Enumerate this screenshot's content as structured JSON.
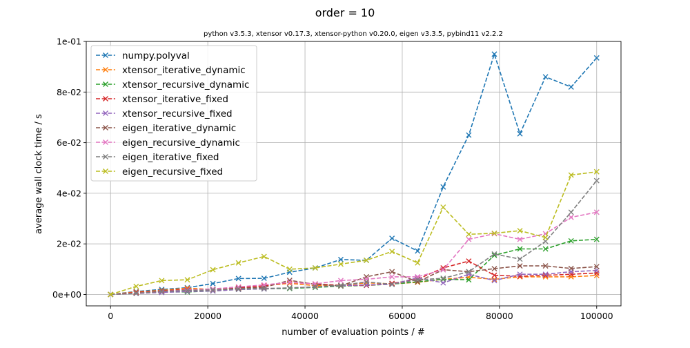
{
  "chart_data": {
    "type": "line",
    "title": "order = 10",
    "subtitle": "python v3.5.3, xtensor v0.17.3, xtensor-python v0.20.0, eigen v3.3.5, pybind11 v2.2.2",
    "xlabel": "number of evaluation points / #",
    "ylabel": "average wall clock time / s",
    "xlim": [
      -5000,
      105000
    ],
    "ylim": [
      -0.0045,
      0.1
    ],
    "xticks": [
      0,
      20000,
      40000,
      60000,
      80000,
      100000
    ],
    "xtick_labels": [
      "0",
      "20000",
      "40000",
      "60000",
      "80000",
      "100000"
    ],
    "yticks": [
      0,
      0.02,
      0.04,
      0.06,
      0.08,
      0.1
    ],
    "ytick_labels": [
      "0e+00",
      "2e-02",
      "4e-02",
      "6e-02",
      "8e-02",
      "1e-01"
    ],
    "grid": true,
    "legend_position": "top-left",
    "marker": "x",
    "linestyle": "dashed",
    "x": [
      0,
      5263,
      10526,
      15789,
      21053,
      26316,
      31579,
      36842,
      42105,
      47368,
      52632,
      57895,
      63158,
      68421,
      73684,
      78947,
      84211,
      89474,
      94737,
      100000
    ],
    "series": [
      {
        "name": "numpy.polyval",
        "color": "#1f77b4",
        "values": [
          0.0,
          0.0012,
          0.002,
          0.0027,
          0.0043,
          0.0063,
          0.0064,
          0.0088,
          0.0105,
          0.0138,
          0.0135,
          0.0222,
          0.0172,
          0.0425,
          0.063,
          0.095,
          0.0635,
          0.086,
          0.082,
          0.0935
        ]
      },
      {
        "name": "xtensor_iterative_dynamic",
        "color": "#ff7f0e",
        "values": [
          0.0,
          0.001,
          0.0016,
          0.0025,
          0.002,
          0.0026,
          0.0035,
          0.0044,
          0.0035,
          0.0036,
          0.0046,
          0.0042,
          0.0048,
          0.006,
          0.0068,
          0.006,
          0.007,
          0.007,
          0.007,
          0.0075
        ]
      },
      {
        "name": "xtensor_recursive_dynamic",
        "color": "#2ca02c",
        "values": [
          0.0,
          0.0004,
          0.001,
          0.001,
          0.0014,
          0.002,
          0.0022,
          0.0024,
          0.0028,
          0.0033,
          0.0036,
          0.0041,
          0.005,
          0.006,
          0.0058,
          0.0155,
          0.018,
          0.018,
          0.0212,
          0.0218
        ]
      },
      {
        "name": "xtensor_iterative_fixed",
        "color": "#d62728",
        "values": [
          0.0,
          0.0008,
          0.0014,
          0.002,
          0.0018,
          0.0026,
          0.0034,
          0.0048,
          0.0042,
          0.0036,
          0.0036,
          0.0044,
          0.006,
          0.0105,
          0.0132,
          0.0076,
          0.0072,
          0.0076,
          0.008,
          0.0085
        ]
      },
      {
        "name": "xtensor_recursive_fixed",
        "color": "#9467bd",
        "values": [
          0.0,
          0.0004,
          0.0008,
          0.0012,
          0.0014,
          0.002,
          0.0022,
          0.0026,
          0.003,
          0.0035,
          0.0038,
          0.004,
          0.0066,
          0.0046,
          0.008,
          0.0055,
          0.008,
          0.008,
          0.009,
          0.0095
        ]
      },
      {
        "name": "eigen_iterative_dynamic",
        "color": "#8c564b",
        "values": [
          0.0,
          0.0005,
          0.0012,
          0.0016,
          0.0018,
          0.0024,
          0.0028,
          0.0056,
          0.004,
          0.0034,
          0.007,
          0.009,
          0.005,
          0.0098,
          0.009,
          0.0102,
          0.0113,
          0.0113,
          0.0103,
          0.011
        ]
      },
      {
        "name": "eigen_recursive_dynamic",
        "color": "#e377c2",
        "values": [
          0.0,
          0.0005,
          0.0012,
          0.0018,
          0.0022,
          0.003,
          0.0038,
          0.0048,
          0.0042,
          0.0055,
          0.006,
          0.007,
          0.007,
          0.0098,
          0.0218,
          0.024,
          0.0218,
          0.024,
          0.0305,
          0.0325
        ]
      },
      {
        "name": "eigen_iterative_fixed",
        "color": "#7f7f7f",
        "values": [
          0.0,
          0.0005,
          0.0012,
          0.0016,
          0.0018,
          0.0022,
          0.0024,
          0.0026,
          0.003,
          0.0036,
          0.005,
          0.004,
          0.0058,
          0.0064,
          0.009,
          0.016,
          0.014,
          0.021,
          0.0325,
          0.045
        ]
      },
      {
        "name": "eigen_recursive_fixed",
        "color": "#bcbd22",
        "values": [
          0.0,
          0.0032,
          0.0055,
          0.0058,
          0.0098,
          0.0125,
          0.015,
          0.01,
          0.0105,
          0.012,
          0.0135,
          0.017,
          0.0125,
          0.0345,
          0.0238,
          0.0242,
          0.0252,
          0.0225,
          0.0472,
          0.0485
        ]
      }
    ]
  }
}
